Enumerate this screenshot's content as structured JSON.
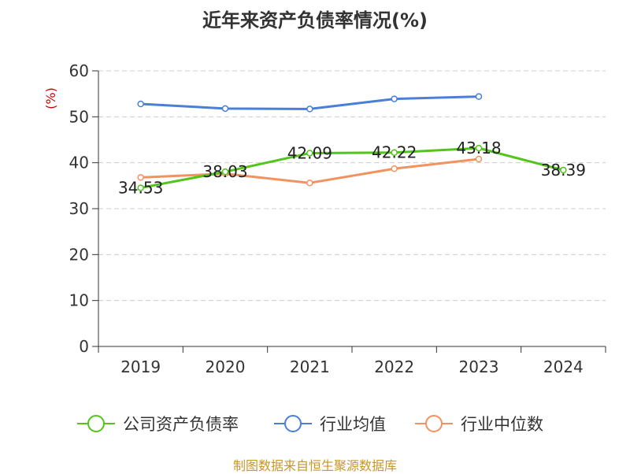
{
  "chart_data": {
    "type": "line",
    "title": "近年来资产负债率情况(%)",
    "ylabel": "(%)",
    "xlabel": "",
    "categories": [
      "2019",
      "2020",
      "2021",
      "2022",
      "2023",
      "2024"
    ],
    "ylim": [
      0,
      60
    ],
    "yticks": [
      0,
      10,
      20,
      30,
      40,
      50,
      60
    ],
    "grid": true,
    "legend_position": "bottom",
    "series": [
      {
        "name": "公司资产负债率",
        "color": "#52c41a",
        "values": [
          34.53,
          38.03,
          42.09,
          42.22,
          43.18,
          38.39
        ],
        "labels": [
          "34.53",
          "38.03",
          "42.09",
          "42.22",
          "43.18",
          "38.39"
        ]
      },
      {
        "name": "行业均值",
        "color": "#4a7fd9",
        "values": [
          52.8,
          51.8,
          51.7,
          53.9,
          54.4,
          null
        ]
      },
      {
        "name": "行业中位数",
        "color": "#f2925e",
        "values": [
          36.8,
          37.6,
          35.6,
          38.7,
          40.8,
          null
        ]
      }
    ]
  },
  "footer": {
    "source": "制图数据来自恒生聚源数据库",
    "source_color": "#c8962a"
  },
  "colors": {
    "axis": "#333333",
    "grid": "#cccccc",
    "ylabel": "#cc0000"
  }
}
